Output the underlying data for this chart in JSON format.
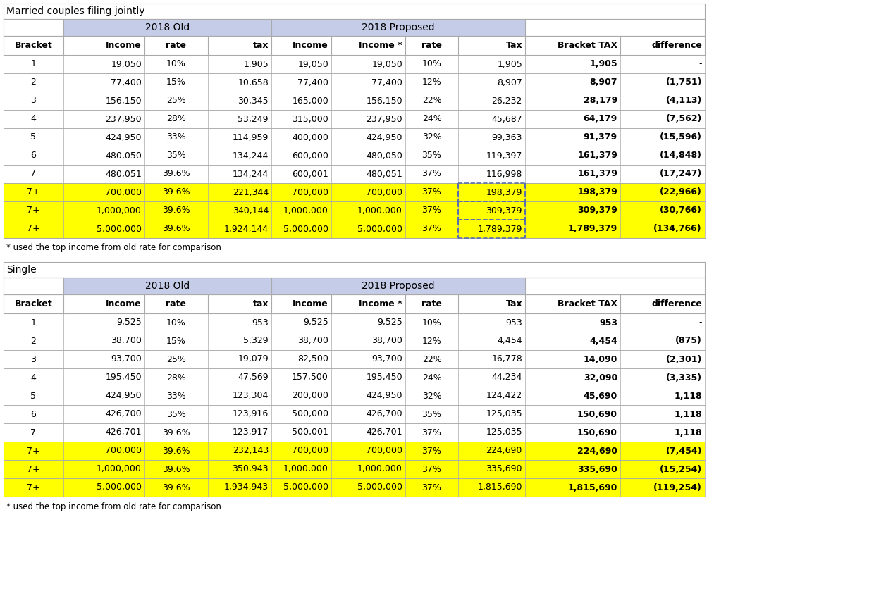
{
  "title1": "Married couples filing jointly",
  "title2": "Single",
  "header_old": "2018 Old",
  "header_proposed": "2018 Proposed",
  "col_headers": [
    "Bracket",
    "Income",
    "rate",
    "tax",
    "Income",
    "Income *",
    "rate",
    "Tax",
    "Bracket TAX",
    "difference"
  ],
  "married_rows": [
    [
      "1",
      "19,050",
      "10%",
      "1,905",
      "19,050",
      "19,050",
      "10%",
      "1,905",
      "1,905",
      "-"
    ],
    [
      "2",
      "77,400",
      "15%",
      "10,658",
      "77,400",
      "77,400",
      "12%",
      "8,907",
      "8,907",
      "(1,751)"
    ],
    [
      "3",
      "156,150",
      "25%",
      "30,345",
      "165,000",
      "156,150",
      "22%",
      "26,232",
      "28,179",
      "(4,113)"
    ],
    [
      "4",
      "237,950",
      "28%",
      "53,249",
      "315,000",
      "237,950",
      "24%",
      "45,687",
      "64,179",
      "(7,562)"
    ],
    [
      "5",
      "424,950",
      "33%",
      "114,959",
      "400,000",
      "424,950",
      "32%",
      "99,363",
      "91,379",
      "(15,596)"
    ],
    [
      "6",
      "480,050",
      "35%",
      "134,244",
      "600,000",
      "480,050",
      "35%",
      "119,397",
      "161,379",
      "(14,848)"
    ],
    [
      "7",
      "480,051",
      "39.6%",
      "134,244",
      "600,001",
      "480,051",
      "37%",
      "116,998",
      "161,379",
      "(17,247)"
    ],
    [
      "7+",
      "700,000",
      "39.6%",
      "221,344",
      "700,000",
      "700,000",
      "37%",
      "198,379",
      "198,379",
      "(22,966)"
    ],
    [
      "7+",
      "1,000,000",
      "39.6%",
      "340,144",
      "1,000,000",
      "1,000,000",
      "37%",
      "309,379",
      "309,379",
      "(30,766)"
    ],
    [
      "7+",
      "5,000,000",
      "39.6%",
      "1,924,144",
      "5,000,000",
      "5,000,000",
      "37%",
      "1,789,379",
      "1,789,379",
      "(134,766)"
    ]
  ],
  "single_rows": [
    [
      "1",
      "9,525",
      "10%",
      "953",
      "9,525",
      "9,525",
      "10%",
      "953",
      "953",
      "-"
    ],
    [
      "2",
      "38,700",
      "15%",
      "5,329",
      "38,700",
      "38,700",
      "12%",
      "4,454",
      "4,454",
      "(875)"
    ],
    [
      "3",
      "93,700",
      "25%",
      "19,079",
      "82,500",
      "93,700",
      "22%",
      "16,778",
      "14,090",
      "(2,301)"
    ],
    [
      "4",
      "195,450",
      "28%",
      "47,569",
      "157,500",
      "195,450",
      "24%",
      "44,234",
      "32,090",
      "(3,335)"
    ],
    [
      "5",
      "424,950",
      "33%",
      "123,304",
      "200,000",
      "424,950",
      "32%",
      "124,422",
      "45,690",
      "1,118"
    ],
    [
      "6",
      "426,700",
      "35%",
      "123,916",
      "500,000",
      "426,700",
      "35%",
      "125,035",
      "150,690",
      "1,118"
    ],
    [
      "7",
      "426,701",
      "39.6%",
      "123,917",
      "500,001",
      "426,701",
      "37%",
      "125,035",
      "150,690",
      "1,118"
    ],
    [
      "7+",
      "700,000",
      "39.6%",
      "232,143",
      "700,000",
      "700,000",
      "37%",
      "224,690",
      "224,690",
      "(7,454)"
    ],
    [
      "7+",
      "1,000,000",
      "39.6%",
      "350,943",
      "1,000,000",
      "1,000,000",
      "37%",
      "335,690",
      "335,690",
      "(15,254)"
    ],
    [
      "7+",
      "5,000,000",
      "39.6%",
      "1,934,943",
      "5,000,000",
      "5,000,000",
      "37%",
      "1,815,690",
      "1,815,690",
      "(119,254)"
    ]
  ],
  "married_yellow_rows": [
    7,
    8,
    9
  ],
  "single_yellow_rows": [
    7,
    8,
    9
  ],
  "married_dashed_rows": [
    7,
    8,
    9
  ],
  "footnote": "* used the top income from old rate for comparison",
  "header_bg": "#c5cce8",
  "yellow_bg": "#ffff00",
  "white_bg": "#ffffff",
  "grid_color": "#aaaaaa",
  "col_aligns": [
    "center",
    "right",
    "center",
    "right",
    "right",
    "right",
    "center",
    "right",
    "right",
    "right"
  ],
  "col_bold": [
    false,
    false,
    false,
    false,
    false,
    false,
    false,
    false,
    true,
    false
  ]
}
